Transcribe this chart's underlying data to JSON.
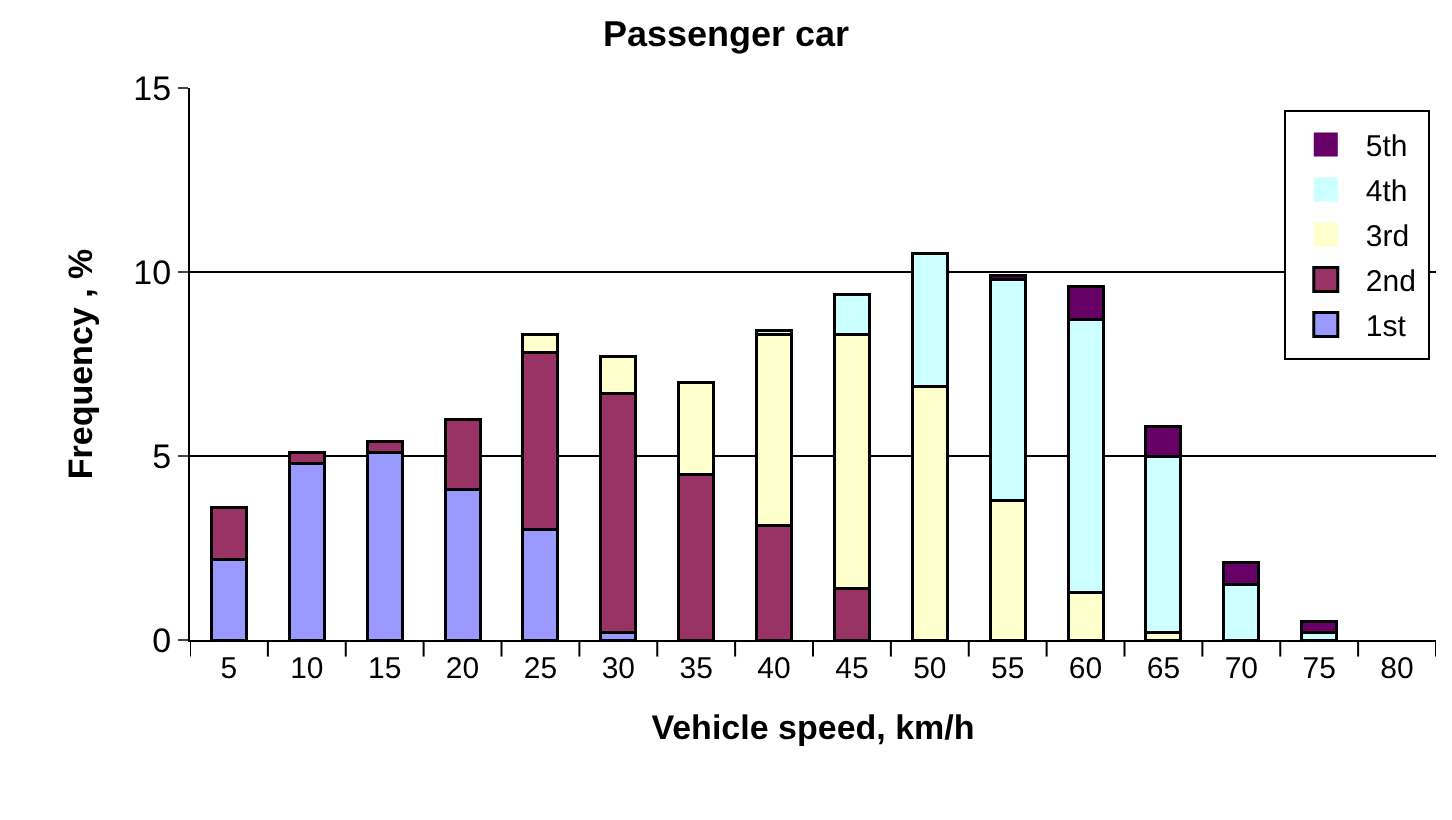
{
  "chart_data": {
    "type": "bar",
    "title": "Passenger car",
    "xlabel": "Vehicle speed, km/h",
    "ylabel": "Frequency , %",
    "categories": [
      "5",
      "10",
      "15",
      "20",
      "25",
      "30",
      "35",
      "40",
      "45",
      "50",
      "55",
      "60",
      "65",
      "70",
      "75",
      "80"
    ],
    "stacked": true,
    "series": [
      {
        "name": "1st",
        "color": "#9999ff",
        "values": [
          2.2,
          4.8,
          5.1,
          4.1,
          3.0,
          0.2,
          0,
          0,
          0,
          0,
          0,
          0,
          0,
          0,
          0,
          0
        ]
      },
      {
        "name": "2nd",
        "color": "#993366",
        "values": [
          1.4,
          0.3,
          0.3,
          1.9,
          4.8,
          6.5,
          4.5,
          3.1,
          1.4,
          0,
          0,
          0,
          0,
          0,
          0,
          0
        ]
      },
      {
        "name": "3rd",
        "color": "#ffffcc",
        "values": [
          0,
          0,
          0,
          0,
          0.5,
          1.0,
          2.5,
          5.2,
          6.9,
          6.9,
          3.8,
          1.3,
          0.2,
          0,
          0,
          0
        ]
      },
      {
        "name": "4th",
        "color": "#ccffff",
        "values": [
          0,
          0,
          0,
          0,
          0,
          0,
          0,
          0.1,
          1.1,
          3.6,
          6.0,
          7.4,
          4.8,
          1.5,
          0.2,
          0
        ]
      },
      {
        "name": "5th",
        "color": "#660066",
        "values": [
          0,
          0,
          0,
          0,
          0,
          0,
          0,
          0,
          0,
          0,
          0.1,
          0.9,
          0.8,
          0.6,
          0.3,
          0
        ]
      }
    ],
    "ylim": [
      0,
      15
    ],
    "yticks": [
      0,
      5,
      10,
      15
    ],
    "grid": "y",
    "legend": "top right"
  }
}
